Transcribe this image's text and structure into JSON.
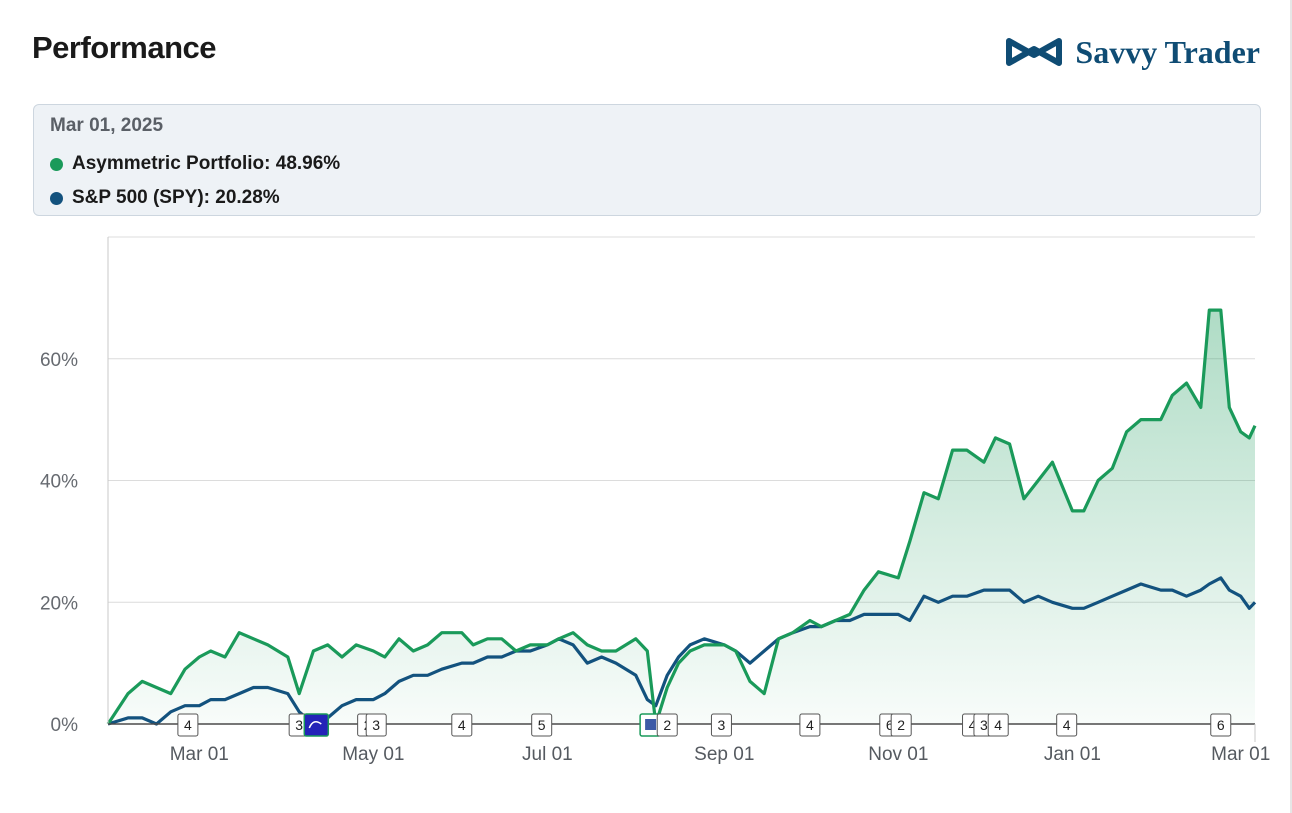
{
  "header": {
    "title": "Performance",
    "brand": "Savvy Trader",
    "brand_icon": "infinity-logo-icon"
  },
  "tooltip": {
    "date": "Mar 01, 2025",
    "rows": [
      {
        "label": "Asymmetric Portfolio: 48.96%",
        "color": "#1a9a5a"
      },
      {
        "label": "S&P 500 (SPY): 20.28%",
        "color": "#13527e"
      }
    ]
  },
  "colors": {
    "portfolio": "#1a9a5a",
    "spy": "#13527e",
    "grid": "#dcdcdc"
  },
  "chart_data": {
    "type": "area",
    "x_range": [
      "2024-01-29",
      "2025-03-06"
    ],
    "ylim": [
      0,
      80
    ],
    "yticks": [
      {
        "value": 0,
        "label": "0%"
      },
      {
        "value": 20,
        "label": "20%"
      },
      {
        "value": 40,
        "label": "40%"
      },
      {
        "value": 60,
        "label": "60%"
      }
    ],
    "xticks": [
      {
        "date": "2024-03-01",
        "label": "Mar 01"
      },
      {
        "date": "2024-05-01",
        "label": "May 01"
      },
      {
        "date": "2024-07-01",
        "label": "Jul 01"
      },
      {
        "date": "2024-09-01",
        "label": "Sep 01"
      },
      {
        "date": "2024-11-01",
        "label": "Nov 01"
      },
      {
        "date": "2025-01-01",
        "label": "Jan 01"
      },
      {
        "date": "2025-03-01",
        "label": "Mar 01"
      }
    ],
    "series": [
      {
        "name": "Asymmetric Portfolio",
        "x": [
          "2024-01-29",
          "2024-02-05",
          "2024-02-10",
          "2024-02-15",
          "2024-02-20",
          "2024-02-25",
          "2024-03-01",
          "2024-03-05",
          "2024-03-10",
          "2024-03-15",
          "2024-03-20",
          "2024-03-25",
          "2024-04-01",
          "2024-04-05",
          "2024-04-10",
          "2024-04-15",
          "2024-04-20",
          "2024-04-25",
          "2024-05-01",
          "2024-05-05",
          "2024-05-10",
          "2024-05-15",
          "2024-05-20",
          "2024-05-25",
          "2024-06-01",
          "2024-06-05",
          "2024-06-10",
          "2024-06-15",
          "2024-06-20",
          "2024-06-25",
          "2024-07-01",
          "2024-07-05",
          "2024-07-10",
          "2024-07-15",
          "2024-07-20",
          "2024-07-25",
          "2024-08-01",
          "2024-08-05",
          "2024-08-08",
          "2024-08-12",
          "2024-08-16",
          "2024-08-20",
          "2024-08-25",
          "2024-09-01",
          "2024-09-05",
          "2024-09-10",
          "2024-09-15",
          "2024-09-20",
          "2024-09-25",
          "2024-10-01",
          "2024-10-05",
          "2024-10-10",
          "2024-10-15",
          "2024-10-20",
          "2024-10-25",
          "2024-11-01",
          "2024-11-05",
          "2024-11-10",
          "2024-11-15",
          "2024-11-20",
          "2024-11-25",
          "2024-12-01",
          "2024-12-05",
          "2024-12-10",
          "2024-12-15",
          "2024-12-20",
          "2024-12-25",
          "2025-01-01",
          "2025-01-05",
          "2025-01-10",
          "2025-01-15",
          "2025-01-20",
          "2025-01-25",
          "2025-02-01",
          "2025-02-05",
          "2025-02-10",
          "2025-02-15",
          "2025-02-18",
          "2025-02-22",
          "2025-02-25",
          "2025-03-01",
          "2025-03-04",
          "2025-03-06"
        ],
        "values": [
          0,
          5,
          7,
          6,
          5,
          9,
          11,
          12,
          11,
          15,
          14,
          13,
          11,
          5,
          12,
          13,
          11,
          13,
          12,
          11,
          14,
          12,
          13,
          15,
          15,
          13,
          14,
          14,
          12,
          13,
          13,
          14,
          15,
          13,
          12,
          12,
          14,
          12,
          0,
          6,
          10,
          12,
          13,
          13,
          12,
          7,
          5,
          14,
          15,
          17,
          16,
          17,
          18,
          22,
          25,
          24,
          30,
          38,
          37,
          45,
          45,
          43,
          47,
          46,
          37,
          40,
          43,
          35,
          35,
          40,
          42,
          48,
          50,
          50,
          54,
          56,
          52,
          68,
          68,
          52,
          48,
          47,
          49
        ]
      },
      {
        "name": "S&P 500 (SPY)",
        "x": [
          "2024-01-29",
          "2024-02-05",
          "2024-02-10",
          "2024-02-15",
          "2024-02-20",
          "2024-02-25",
          "2024-03-01",
          "2024-03-05",
          "2024-03-10",
          "2024-03-15",
          "2024-03-20",
          "2024-03-25",
          "2024-04-01",
          "2024-04-05",
          "2024-04-10",
          "2024-04-15",
          "2024-04-20",
          "2024-04-25",
          "2024-05-01",
          "2024-05-05",
          "2024-05-10",
          "2024-05-15",
          "2024-05-20",
          "2024-05-25",
          "2024-06-01",
          "2024-06-05",
          "2024-06-10",
          "2024-06-15",
          "2024-06-20",
          "2024-06-25",
          "2024-07-01",
          "2024-07-05",
          "2024-07-10",
          "2024-07-15",
          "2024-07-20",
          "2024-07-25",
          "2024-08-01",
          "2024-08-05",
          "2024-08-08",
          "2024-08-12",
          "2024-08-16",
          "2024-08-20",
          "2024-08-25",
          "2024-09-01",
          "2024-09-05",
          "2024-09-10",
          "2024-09-15",
          "2024-09-20",
          "2024-09-25",
          "2024-10-01",
          "2024-10-05",
          "2024-10-10",
          "2024-10-15",
          "2024-10-20",
          "2024-10-25",
          "2024-11-01",
          "2024-11-05",
          "2024-11-10",
          "2024-11-15",
          "2024-11-20",
          "2024-11-25",
          "2024-12-01",
          "2024-12-05",
          "2024-12-10",
          "2024-12-15",
          "2024-12-20",
          "2024-12-25",
          "2025-01-01",
          "2025-01-05",
          "2025-01-10",
          "2025-01-15",
          "2025-01-20",
          "2025-01-25",
          "2025-02-01",
          "2025-02-05",
          "2025-02-10",
          "2025-02-15",
          "2025-02-18",
          "2025-02-22",
          "2025-02-25",
          "2025-03-01",
          "2025-03-04",
          "2025-03-06"
        ],
        "values": [
          0,
          1,
          1,
          0,
          2,
          3,
          3,
          4,
          4,
          5,
          6,
          6,
          5,
          2,
          0,
          1,
          3,
          4,
          4,
          5,
          7,
          8,
          8,
          9,
          10,
          10,
          11,
          11,
          12,
          12,
          13,
          14,
          13,
          10,
          11,
          10,
          8,
          4,
          3,
          8,
          11,
          13,
          14,
          13,
          12,
          10,
          12,
          14,
          15,
          16,
          16,
          17,
          17,
          18,
          18,
          18,
          17,
          21,
          20,
          21,
          21,
          22,
          22,
          22,
          20,
          21,
          20,
          19,
          19,
          20,
          21,
          22,
          23,
          22,
          22,
          21,
          22,
          23,
          24,
          22,
          21,
          19,
          20
        ]
      }
    ],
    "event_markers": [
      {
        "date": "2024-02-26",
        "label": "4"
      },
      {
        "date": "2024-04-05",
        "label": "3"
      },
      {
        "date": "2024-04-11",
        "label": "",
        "icon": "disney-logo-icon"
      },
      {
        "date": "2024-04-29",
        "label": "2"
      },
      {
        "date": "2024-05-02",
        "label": "3"
      },
      {
        "date": "2024-06-01",
        "label": "4"
      },
      {
        "date": "2024-06-29",
        "label": "5"
      },
      {
        "date": "2024-08-06",
        "label": "",
        "icon": "stock-logo-icon"
      },
      {
        "date": "2024-08-12",
        "label": "2"
      },
      {
        "date": "2024-08-31",
        "label": "3"
      },
      {
        "date": "2024-10-01",
        "label": "4"
      },
      {
        "date": "2024-10-29",
        "label": "6"
      },
      {
        "date": "2024-11-02",
        "label": "2"
      },
      {
        "date": "2024-11-27",
        "label": "4"
      },
      {
        "date": "2024-12-01",
        "label": "3"
      },
      {
        "date": "2024-12-06",
        "label": "4"
      },
      {
        "date": "2024-12-30",
        "label": "4"
      },
      {
        "date": "2025-02-22",
        "label": "6"
      }
    ]
  }
}
